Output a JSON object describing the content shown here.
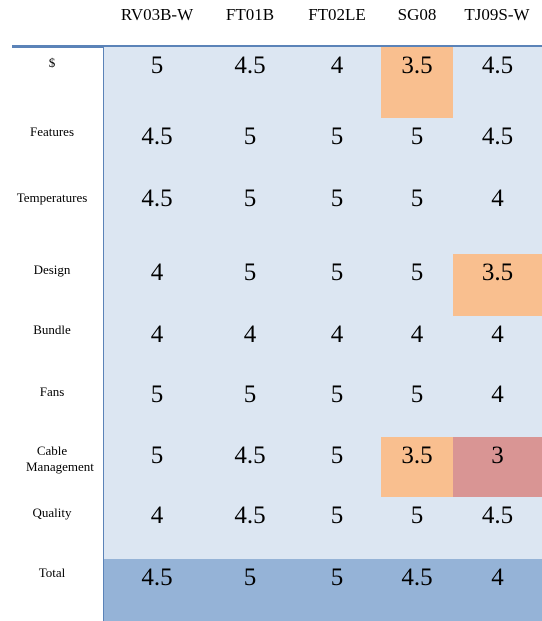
{
  "table": {
    "columns": [
      "RV03B-W",
      "FT01B",
      "FT02LE",
      "SG08",
      "TJ09S-W"
    ],
    "rows": [
      {
        "label": "$",
        "values": [
          "5",
          "4.5",
          "4",
          "3.5",
          "4.5"
        ],
        "highlights": [
          null,
          null,
          null,
          "#f9bf8f",
          null
        ]
      },
      {
        "label": "Features",
        "values": [
          "4.5",
          "5",
          "5",
          "5",
          "4.5"
        ],
        "highlights": [
          null,
          null,
          null,
          null,
          null
        ]
      },
      {
        "label": "Temperatures",
        "values": [
          "4.5",
          "5",
          "5",
          "5",
          "4"
        ],
        "highlights": [
          null,
          null,
          null,
          null,
          null
        ]
      },
      {
        "label": "Design",
        "values": [
          "4",
          "5",
          "5",
          "5",
          "3.5"
        ],
        "highlights": [
          null,
          null,
          null,
          null,
          "#f9bf8f"
        ]
      },
      {
        "label": "Bundle",
        "values": [
          "4",
          "4",
          "4",
          "4",
          "4"
        ],
        "highlights": [
          null,
          null,
          null,
          null,
          null
        ]
      },
      {
        "label": "Fans",
        "values": [
          "5",
          "5",
          "5",
          "5",
          "4"
        ],
        "highlights": [
          null,
          null,
          null,
          null,
          null
        ]
      },
      {
        "label": "Cable Management",
        "values": [
          "5",
          "4.5",
          "5",
          "3.5",
          "3"
        ],
        "highlights": [
          null,
          null,
          null,
          "#f9bf8f",
          "#d99594"
        ]
      },
      {
        "label": "Quality",
        "values": [
          "4",
          "4.5",
          "5",
          "5",
          "4.5"
        ],
        "highlights": [
          null,
          null,
          null,
          null,
          null
        ]
      },
      {
        "label": "Total",
        "values": [
          "4.5",
          "5",
          "5",
          "4.5",
          "4"
        ],
        "highlights": [
          null,
          null,
          null,
          null,
          null
        ]
      }
    ]
  },
  "colors": {
    "table_bg": "#dce6f2",
    "total_bg": "#95b3d7",
    "rule": "#5b83b8",
    "warn": "#f9bf8f",
    "bad": "#d99594"
  }
}
